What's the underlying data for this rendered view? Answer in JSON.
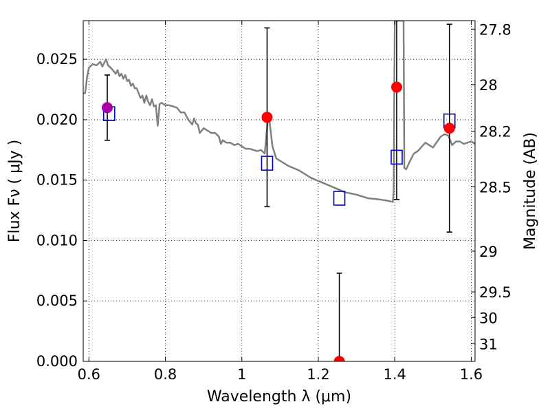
{
  "chart_data": {
    "type": "scatter",
    "title": "",
    "xlabel": "Wavelength  λ (μm)",
    "ylabel": "Flux  Fν  ( μJy )",
    "y2label": "Magnitude (AB)",
    "xlim": [
      0.585,
      1.61
    ],
    "ylim": [
      0.0,
      0.0282
    ],
    "grid": true,
    "x_ticks": [
      0.6,
      0.8,
      1.0,
      1.2,
      1.4,
      1.6
    ],
    "x_tick_labels": [
      "0.6",
      "0.8",
      "1",
      "1.2",
      "1.4",
      "1.6"
    ],
    "y_ticks": [
      0.0,
      0.005,
      0.01,
      0.015,
      0.02,
      0.025
    ],
    "y_tick_labels": [
      "0.000",
      "0.005",
      "0.010",
      "0.015",
      "0.020",
      "0.025"
    ],
    "y2_ticks": [
      {
        "label": "27.8",
        "flux": 0.0275
      },
      {
        "label": "28",
        "flux": 0.02291
      },
      {
        "label": "28.2",
        "flux": 0.01905
      },
      {
        "label": "28.5",
        "flux": 0.01445
      },
      {
        "label": "29",
        "flux": 0.00912
      },
      {
        "label": "29.5",
        "flux": 0.00575
      },
      {
        "label": "30",
        "flux": 0.00363
      },
      {
        "label": "31",
        "flux": 0.00145
      }
    ],
    "template_sed": {
      "color": "#808080",
      "x": [
        0.585,
        0.59,
        0.595,
        0.6,
        0.61,
        0.62,
        0.63,
        0.635,
        0.64,
        0.645,
        0.65,
        0.66,
        0.665,
        0.67,
        0.675,
        0.68,
        0.685,
        0.69,
        0.695,
        0.7,
        0.705,
        0.71,
        0.715,
        0.72,
        0.725,
        0.73,
        0.735,
        0.74,
        0.745,
        0.75,
        0.755,
        0.76,
        0.765,
        0.77,
        0.775,
        0.78,
        0.785,
        0.79,
        0.8,
        0.81,
        0.82,
        0.83,
        0.84,
        0.85,
        0.86,
        0.87,
        0.875,
        0.88,
        0.885,
        0.89,
        0.9,
        0.91,
        0.92,
        0.93,
        0.94,
        0.945,
        0.95,
        0.96,
        0.97,
        0.98,
        0.99,
        1.0,
        1.01,
        1.02,
        1.03,
        1.04,
        1.05,
        1.06,
        1.065,
        1.07,
        1.08,
        1.09,
        1.1,
        1.12,
        1.15,
        1.18,
        1.21,
        1.24,
        1.27,
        1.3,
        1.33,
        1.36,
        1.38,
        1.395,
        1.397,
        1.4,
        1.405,
        1.41,
        1.42,
        1.423,
        1.425,
        1.43,
        1.44,
        1.45,
        1.46,
        1.48,
        1.5,
        1.52,
        1.53,
        1.54,
        1.55,
        1.56,
        1.57,
        1.58,
        1.59,
        1.6,
        1.61
      ],
      "y": [
        0.0222,
        0.0222,
        0.0235,
        0.0243,
        0.0246,
        0.0245,
        0.0248,
        0.0244,
        0.0247,
        0.025,
        0.0245,
        0.0242,
        0.024,
        0.0238,
        0.0241,
        0.0236,
        0.0238,
        0.0234,
        0.0237,
        0.0232,
        0.0233,
        0.0228,
        0.023,
        0.0226,
        0.0226,
        0.0222,
        0.0218,
        0.022,
        0.0214,
        0.022,
        0.0215,
        0.0212,
        0.0217,
        0.0211,
        0.0212,
        0.0195,
        0.0213,
        0.0214,
        0.0212,
        0.0212,
        0.0211,
        0.021,
        0.0206,
        0.0206,
        0.02,
        0.0196,
        0.0201,
        0.0197,
        0.0196,
        0.0189,
        0.0193,
        0.0191,
        0.0189,
        0.0189,
        0.0186,
        0.018,
        0.0183,
        0.0181,
        0.0181,
        0.0179,
        0.018,
        0.0178,
        0.0176,
        0.0176,
        0.0175,
        0.0174,
        0.0175,
        0.0172,
        0.019,
        0.0205,
        0.0178,
        0.0168,
        0.0166,
        0.0162,
        0.0158,
        0.0152,
        0.0148,
        0.0144,
        0.014,
        0.0138,
        0.0135,
        0.0134,
        0.0133,
        0.0132,
        0.014,
        0.0282,
        0.0282,
        0.0282,
        0.0282,
        0.0282,
        0.016,
        0.0159,
        0.0166,
        0.0172,
        0.0174,
        0.0181,
        0.0177,
        0.0186,
        0.0188,
        0.0187,
        0.0179,
        0.0182,
        0.0182,
        0.018,
        0.0181,
        0.0182,
        0.018
      ]
    },
    "model_photometry": {
      "color": "#0000cc",
      "x": [
        0.653,
        1.066,
        1.255,
        1.405,
        1.543
      ],
      "y": [
        0.0205,
        0.0164,
        0.0135,
        0.0169,
        0.0199
      ]
    },
    "observed_photometry": {
      "color": "#ff0000",
      "x": [
        0.648,
        1.066,
        1.255,
        1.405,
        1.543
      ],
      "y": [
        0.021,
        0.0202,
        0.0,
        0.0227,
        0.0193
      ],
      "err_low": [
        0.0183,
        0.0128,
        0.0,
        0.0134,
        0.0107
      ],
      "err_high": [
        0.0237,
        0.0276,
        0.0073,
        0.0282,
        0.0279
      ]
    },
    "highlight_point_color": "#aa00aa",
    "errorbar_color": "#000000"
  }
}
